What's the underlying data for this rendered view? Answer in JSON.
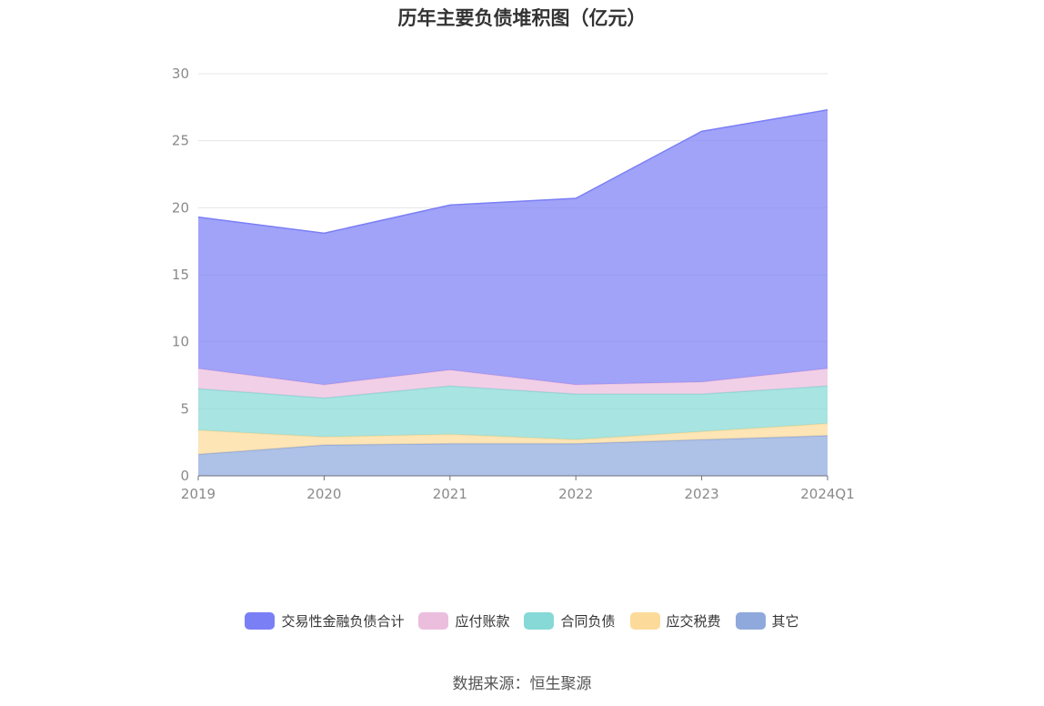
{
  "chart_data": {
    "type": "area",
    "stacked": true,
    "title": "历年主要负债堆积图（亿元）",
    "categories": [
      "2019",
      "2020",
      "2021",
      "2022",
      "2023",
      "2024Q1"
    ],
    "ylim": [
      0,
      30
    ],
    "yticks": [
      "0",
      "5",
      "10",
      "15",
      "20",
      "25",
      "30"
    ],
    "grid": true,
    "legend_position": "bottom",
    "series": [
      {
        "name": "其它",
        "color": "#8fa9dc",
        "values": [
          1.6,
          2.3,
          2.4,
          2.4,
          2.7,
          3.0
        ]
      },
      {
        "name": "应交税费",
        "color": "#fcdb9a",
        "values": [
          1.8,
          0.6,
          0.7,
          0.3,
          0.6,
          0.9
        ]
      },
      {
        "name": "合同负债",
        "color": "#86d9d6",
        "values": [
          3.1,
          2.9,
          3.6,
          3.4,
          2.8,
          2.8
        ]
      },
      {
        "name": "应付账款",
        "color": "#ebbede",
        "values": [
          1.5,
          1.0,
          1.2,
          0.7,
          0.9,
          1.3
        ]
      },
      {
        "name": "交易性金融负债合计",
        "color": "#7b7ff5",
        "values": [
          11.3,
          11.3,
          12.3,
          13.9,
          18.7,
          19.3
        ]
      }
    ]
  },
  "legend": [
    {
      "label": "交易性金融负债合计",
      "color": "#7b7ff5"
    },
    {
      "label": "应付账款",
      "color": "#ebbede"
    },
    {
      "label": "合同负债",
      "color": "#86d9d6"
    },
    {
      "label": "应交税费",
      "color": "#fcdb9a"
    },
    {
      "label": "其它",
      "color": "#8fa9dc"
    }
  ],
  "source": "数据来源：恒生聚源"
}
